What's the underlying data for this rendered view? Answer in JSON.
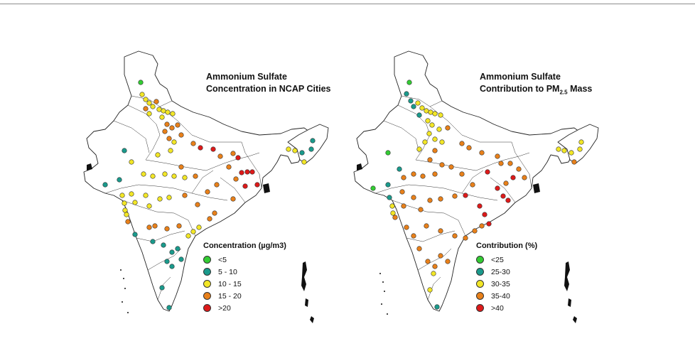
{
  "panels": [
    {
      "title_line1": "Ammonium Sulfate",
      "title_line2": "Concentration in NCAP Cities",
      "legend_title": "Concentration (µg/m3)",
      "legend": [
        {
          "label": "<5",
          "color": "#33cc33"
        },
        {
          "label": "5 - 10",
          "color": "#1a9a8c"
        },
        {
          "label": "10 - 15",
          "color": "#f2e626"
        },
        {
          "label": "15 - 20",
          "color": "#e8801a"
        },
        {
          "label": ">20",
          "color": "#dd1a1a"
        }
      ]
    },
    {
      "title_line1": "Ammonium Sulfate",
      "title_line2_prefix": "Contribution to PM",
      "title_line2_sub": "2.5",
      "title_line2_suffix": " Mass",
      "legend_title": "Contribution (%)",
      "legend": [
        {
          "label": "<25",
          "color": "#33cc33"
        },
        {
          "label": "25-30",
          "color": "#1a9a8c"
        },
        {
          "label": "30-35",
          "color": "#f2e626"
        },
        {
          "label": "35-40",
          "color": "#e8801a"
        },
        {
          "label": ">40",
          "color": "#dd1a1a"
        }
      ]
    }
  ]
}
